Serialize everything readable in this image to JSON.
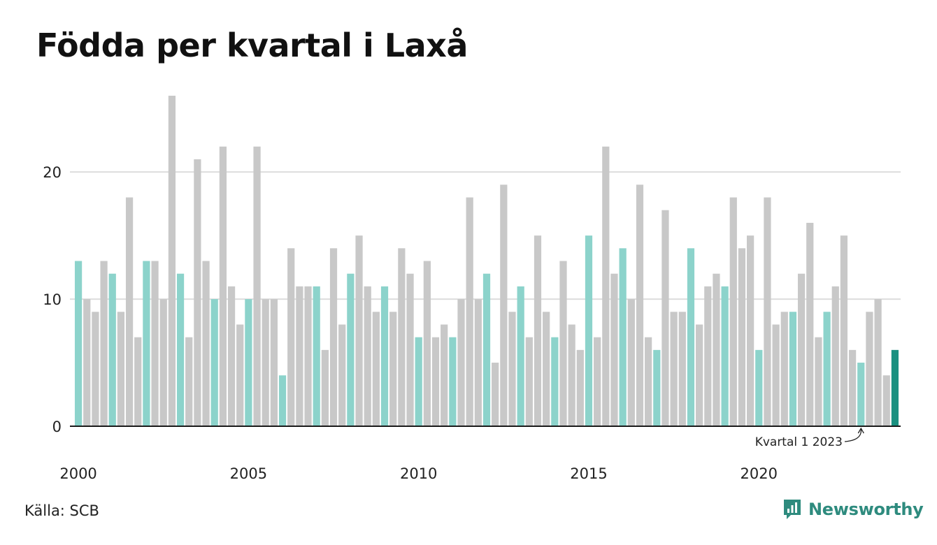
{
  "title": "Födda per kvartal i Laxå",
  "source": "Källa: SCB",
  "brand": {
    "name": "Newsworthy",
    "logo_icon": "newsworthy-logo-icon"
  },
  "colors": {
    "other_quarter": "#c8c8c8",
    "q1": "#8cd3cb",
    "latest": "#1a9080",
    "axis": "#1a1a1a",
    "grid": "#dddddd",
    "brand": "#2e8b7e"
  },
  "chart_data": {
    "type": "bar",
    "title": "Födda per kvartal i Laxå",
    "xlabel": "",
    "ylabel": "",
    "x_start": "2000 Q1",
    "frequency": "quarterly",
    "values": [
      13,
      10,
      9,
      13,
      12,
      9,
      18,
      7,
      13,
      13,
      10,
      26,
      12,
      7,
      21,
      13,
      10,
      22,
      11,
      8,
      10,
      22,
      10,
      10,
      4,
      14,
      11,
      11,
      11,
      6,
      14,
      8,
      12,
      15,
      11,
      9,
      11,
      9,
      14,
      12,
      7,
      13,
      7,
      8,
      7,
      10,
      18,
      10,
      12,
      5,
      19,
      9,
      11,
      7,
      15,
      9,
      7,
      13,
      8,
      6,
      15,
      7,
      22,
      12,
      14,
      10,
      19,
      7,
      6,
      17,
      9,
      9,
      14,
      8,
      11,
      12,
      11,
      18,
      14,
      15,
      6,
      18,
      8,
      9,
      9,
      12,
      16,
      7,
      9,
      11,
      15,
      6,
      5,
      9,
      10,
      4,
      6
    ],
    "x_tick_labels": [
      "2000",
      "2005",
      "2010",
      "2015",
      "2020"
    ],
    "y_ticks": [
      0,
      10,
      20
    ],
    "ylim": [
      0,
      26
    ],
    "grid": true,
    "highlight": "Q1 bars in light teal, latest quarter in dark teal",
    "annotation": {
      "label": "Kvartal 1 2023"
    }
  }
}
